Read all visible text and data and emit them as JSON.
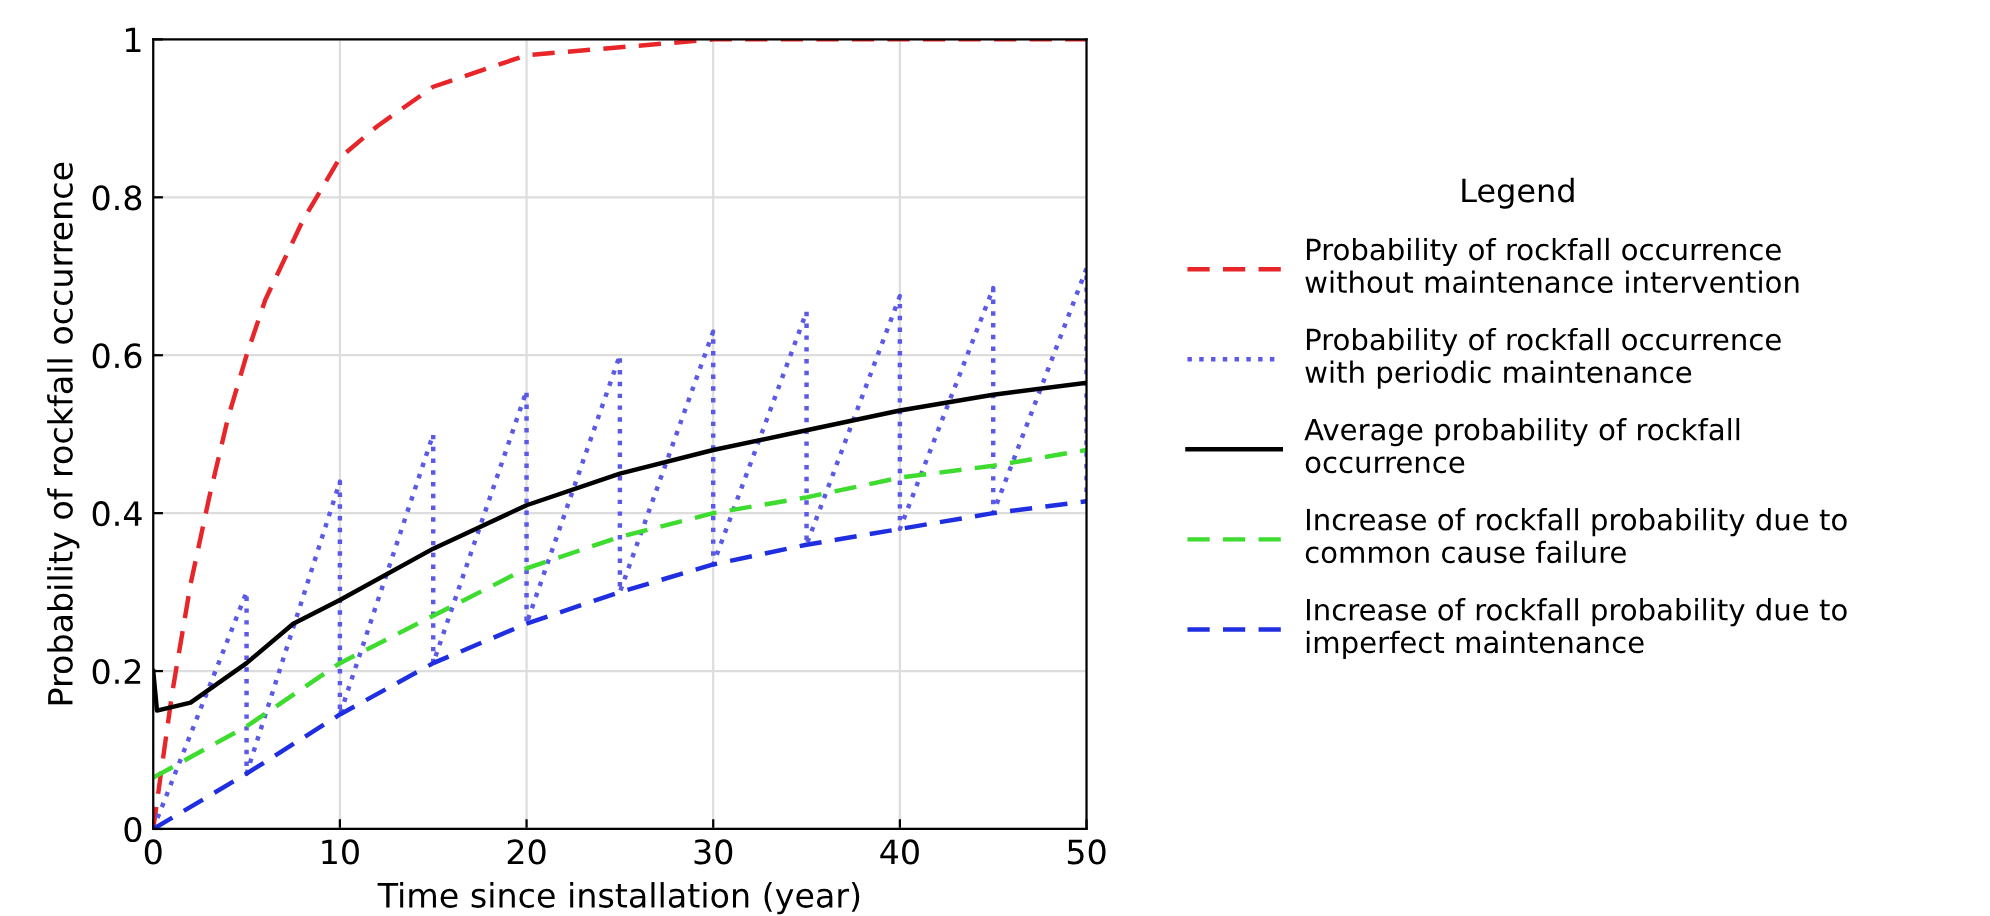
{
  "chart_data": {
    "type": "line",
    "xlabel": "Time since installation (year)",
    "ylabel": "Probability of rockfall occurrence",
    "legend_title": "Legend",
    "legend": "right",
    "grid": true,
    "xlim": [
      0,
      50
    ],
    "ylim": [
      0,
      1
    ],
    "xticks": [
      0,
      10,
      20,
      30,
      40,
      50
    ],
    "yticks": [
      0,
      {
        "value": 0.2,
        "label": "0.2"
      },
      {
        "value": 0.4,
        "label": "0.4"
      },
      {
        "value": 0.6,
        "label": "0.6"
      },
      {
        "value": 0.8,
        "label": "0.8"
      },
      1
    ],
    "series": [
      {
        "name": "Probability of rockfall occurrence\nwithout maintenance intervention",
        "color": "#e8262a",
        "line_style": "dashed",
        "x": [
          0,
          1,
          2,
          3,
          4,
          5,
          6,
          8,
          10,
          12,
          15,
          20,
          25,
          30,
          40,
          50
        ],
        "values": [
          0,
          0.17,
          0.31,
          0.42,
          0.52,
          0.6,
          0.67,
          0.77,
          0.85,
          0.89,
          0.94,
          0.98,
          0.99,
          1,
          1,
          1
        ]
      },
      {
        "name": "Probability of rockfall occurrence\nwith periodic maintenance",
        "color": "#5a5ae6",
        "line_style": "dotted",
        "x": [
          0,
          5,
          5,
          10,
          10,
          15,
          15,
          20,
          20,
          25,
          25,
          30,
          30,
          35,
          35,
          40,
          40,
          45,
          45,
          50,
          50
        ],
        "values": [
          0,
          0.3,
          0.07,
          0.44,
          0.145,
          0.5,
          0.21,
          0.555,
          0.26,
          0.6,
          0.3,
          0.63,
          0.335,
          0.655,
          0.36,
          0.675,
          0.38,
          0.685,
          0.4,
          0.71,
          0.415
        ]
      },
      {
        "name": "Average probability of rockfall\noccurrence",
        "color": "#000000",
        "line_style": "solid",
        "x": [
          0,
          0.2,
          2,
          5,
          7.5,
          10,
          15,
          20,
          25,
          30,
          35,
          40,
          45,
          50
        ],
        "values": [
          0.2,
          0.15,
          0.16,
          0.21,
          0.26,
          0.29,
          0.355,
          0.41,
          0.45,
          0.48,
          0.505,
          0.53,
          0.55,
          0.565
        ]
      },
      {
        "name": "Increase of rockfall probability due to\ncommon cause failure",
        "color": "#3ddc2e",
        "line_style": "dashed",
        "x": [
          0,
          5,
          10,
          15,
          20,
          25,
          30,
          35,
          40,
          45,
          50
        ],
        "values": [
          0.065,
          0.13,
          0.21,
          0.27,
          0.33,
          0.37,
          0.4,
          0.42,
          0.445,
          0.46,
          0.48
        ]
      },
      {
        "name": "Increase of rockfall probability due to\nimperfect maintenance",
        "color": "#1f2ee0",
        "line_style": "dashed",
        "x": [
          0,
          5,
          10,
          15,
          20,
          25,
          30,
          35,
          40,
          45,
          50
        ],
        "values": [
          0,
          0.07,
          0.145,
          0.21,
          0.26,
          0.3,
          0.335,
          0.36,
          0.38,
          0.4,
          0.415
        ]
      }
    ]
  }
}
